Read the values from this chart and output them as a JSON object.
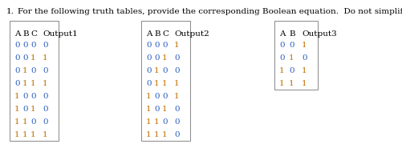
{
  "title_num": "1.",
  "title_text": "For the following truth tables, provide the corresponding Boolean equation.  Do not simplify the equations.",
  "background_color": "#ffffff",
  "table1": {
    "header": [
      "A",
      "B",
      "C",
      "Output1"
    ],
    "rows": [
      [
        "0",
        "0",
        "0",
        "0"
      ],
      [
        "0",
        "0",
        "1",
        "1"
      ],
      [
        "0",
        "1",
        "0",
        "0"
      ],
      [
        "0",
        "1",
        "1",
        "1"
      ],
      [
        "1",
        "0",
        "0",
        "0"
      ],
      [
        "1",
        "0",
        "1",
        "0"
      ],
      [
        "1",
        "1",
        "0",
        "0"
      ],
      [
        "1",
        "1",
        "1",
        "1"
      ]
    ]
  },
  "table2": {
    "header": [
      "A",
      "B",
      "C",
      "Output2"
    ],
    "rows": [
      [
        "0",
        "0",
        "0",
        "1"
      ],
      [
        "0",
        "0",
        "1",
        "0"
      ],
      [
        "0",
        "1",
        "0",
        "0"
      ],
      [
        "0",
        "1",
        "1",
        "1"
      ],
      [
        "1",
        "0",
        "0",
        "1"
      ],
      [
        "1",
        "0",
        "1",
        "0"
      ],
      [
        "1",
        "1",
        "0",
        "0"
      ],
      [
        "1",
        "1",
        "1",
        "0"
      ]
    ]
  },
  "table3": {
    "header": [
      "A",
      "B",
      "Output3"
    ],
    "rows": [
      [
        "0",
        "0",
        "1"
      ],
      [
        "0",
        "1",
        "0"
      ],
      [
        "1",
        "0",
        "1"
      ],
      [
        "1",
        "1",
        "1"
      ]
    ]
  },
  "font_size": 7.5,
  "title_fontsize": 7.5,
  "num_fontsize": 7.5,
  "col_color_0": "#3060c0",
  "col_color_1": "#c07000",
  "header_color": "#000000",
  "box_color": "#888888"
}
